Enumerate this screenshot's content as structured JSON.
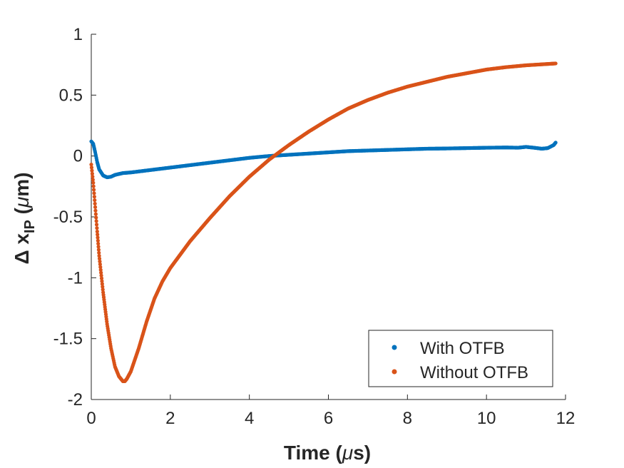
{
  "chart_data": {
    "type": "scatter",
    "xlabel_main": "Time (",
    "xlabel_mu": "μ",
    "xlabel_tail": "s)",
    "ylabel_main": "Δ x",
    "ylabel_sub": "IP",
    "ylabel_unit_open": " (",
    "ylabel_mu": "μ",
    "ylabel_tail": "m)",
    "xlim": [
      0,
      12
    ],
    "ylim": [
      -2,
      1
    ],
    "x_ticks": [
      0,
      2,
      4,
      6,
      8,
      10,
      12
    ],
    "x_tick_labels": [
      "0",
      "2",
      "4",
      "6",
      "8",
      "10",
      "12"
    ],
    "y_ticks": [
      1,
      0.5,
      0,
      -0.5,
      -1,
      -1.5,
      -2
    ],
    "y_tick_labels": [
      "1",
      "0.5",
      "0",
      "-0.5",
      "-1",
      "-1.5",
      "-2"
    ],
    "grid": false,
    "legend_position": "bottom-right",
    "series": [
      {
        "name": "With OTFB",
        "color": "#0072BD",
        "points": [
          [
            0,
            0.12
          ],
          [
            0.05,
            0.1
          ],
          [
            0.1,
            0.03
          ],
          [
            0.15,
            -0.05
          ],
          [
            0.2,
            -0.11
          ],
          [
            0.3,
            -0.16
          ],
          [
            0.4,
            -0.175
          ],
          [
            0.5,
            -0.17
          ],
          [
            0.6,
            -0.155
          ],
          [
            0.8,
            -0.14
          ],
          [
            1,
            -0.135
          ],
          [
            1.5,
            -0.115
          ],
          [
            2,
            -0.095
          ],
          [
            2.5,
            -0.075
          ],
          [
            3,
            -0.055
          ],
          [
            3.5,
            -0.035
          ],
          [
            4,
            -0.015
          ],
          [
            4.5,
            0.0
          ],
          [
            5,
            0.01
          ],
          [
            5.5,
            0.02
          ],
          [
            6,
            0.03
          ],
          [
            6.5,
            0.04
          ],
          [
            7,
            0.045
          ],
          [
            7.5,
            0.05
          ],
          [
            8,
            0.055
          ],
          [
            8.5,
            0.06
          ],
          [
            9,
            0.062
          ],
          [
            9.5,
            0.065
          ],
          [
            10,
            0.068
          ],
          [
            10.5,
            0.07
          ],
          [
            10.8,
            0.068
          ],
          [
            11,
            0.075
          ],
          [
            11.2,
            0.068
          ],
          [
            11.4,
            0.06
          ],
          [
            11.55,
            0.065
          ],
          [
            11.7,
            0.09
          ],
          [
            11.75,
            0.11
          ]
        ]
      },
      {
        "name": "Without OTFB",
        "color": "#D95319",
        "points": [
          [
            0,
            -0.07
          ],
          [
            0.05,
            -0.22
          ],
          [
            0.1,
            -0.42
          ],
          [
            0.15,
            -0.62
          ],
          [
            0.2,
            -0.82
          ],
          [
            0.3,
            -1.12
          ],
          [
            0.4,
            -1.38
          ],
          [
            0.5,
            -1.58
          ],
          [
            0.6,
            -1.73
          ],
          [
            0.7,
            -1.81
          ],
          [
            0.8,
            -1.85
          ],
          [
            0.85,
            -1.85
          ],
          [
            0.9,
            -1.83
          ],
          [
            1,
            -1.77
          ],
          [
            1.2,
            -1.58
          ],
          [
            1.4,
            -1.36
          ],
          [
            1.6,
            -1.17
          ],
          [
            1.8,
            -1.03
          ],
          [
            2,
            -0.92
          ],
          [
            2.5,
            -0.7
          ],
          [
            3,
            -0.51
          ],
          [
            3.5,
            -0.33
          ],
          [
            4,
            -0.17
          ],
          [
            4.5,
            -0.03
          ],
          [
            5,
            0.09
          ],
          [
            5.5,
            0.2
          ],
          [
            6,
            0.3
          ],
          [
            6.5,
            0.39
          ],
          [
            7,
            0.46
          ],
          [
            7.5,
            0.52
          ],
          [
            8,
            0.57
          ],
          [
            8.5,
            0.61
          ],
          [
            9,
            0.65
          ],
          [
            9.5,
            0.68
          ],
          [
            10,
            0.71
          ],
          [
            10.5,
            0.73
          ],
          [
            11,
            0.745
          ],
          [
            11.5,
            0.755
          ],
          [
            11.75,
            0.76
          ]
        ]
      }
    ]
  }
}
